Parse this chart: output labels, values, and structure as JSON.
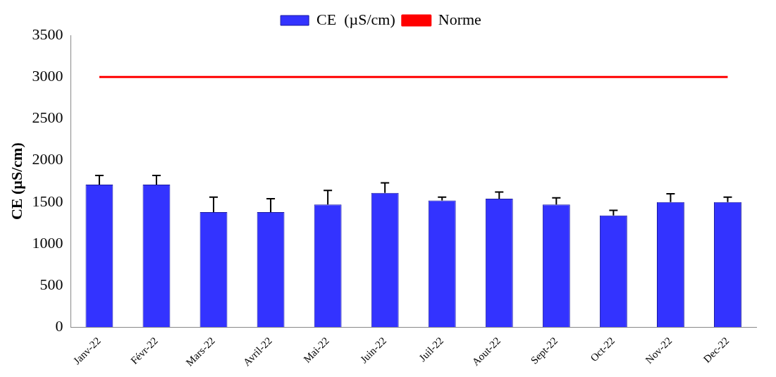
{
  "chart_data": {
    "type": "bar",
    "ylabel": "CE (µS/cm)",
    "categories": [
      "Janv-22",
      "Févr-22",
      "Mars-22",
      "Avril-22",
      "Mai-22",
      "Juin-22",
      "Juil-22",
      "Aout-22",
      "Sept-22",
      "Oct-22",
      "Nov-22",
      "Dec-22"
    ],
    "series": [
      {
        "name": "CE  (µS/cm)",
        "color": "#3333ff",
        "values": [
          1710,
          1710,
          1380,
          1380,
          1470,
          1610,
          1520,
          1540,
          1470,
          1340,
          1500,
          1500
        ],
        "errors": [
          110,
          110,
          180,
          160,
          170,
          120,
          40,
          80,
          80,
          60,
          100,
          60
        ]
      },
      {
        "name": "Norme",
        "type": "line",
        "color": "#ff0000",
        "values": [
          3000,
          3000,
          3000,
          3000,
          3000,
          3000,
          3000,
          3000,
          3000,
          3000,
          3000,
          3000
        ]
      }
    ],
    "ylim": [
      0,
      3500
    ],
    "yticks": [
      0,
      500,
      1000,
      1500,
      2000,
      2500,
      3000,
      3500
    ],
    "grid": false,
    "legend": "top",
    "marker": "none"
  }
}
